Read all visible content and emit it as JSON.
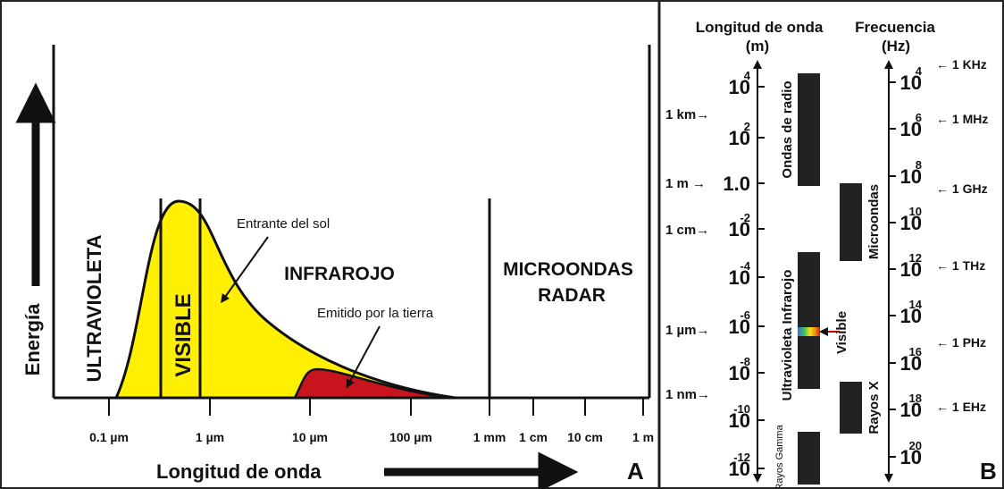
{
  "panel_a": {
    "y_axis_label": "Energía",
    "x_axis_label": "Longitud de onda",
    "panel_label": "A",
    "regions": [
      "ULTRAVIOLETA",
      "VISIBLE",
      "INFRAROJO",
      "MICROONDAS",
      "RADAR"
    ],
    "annotations": [
      "Entrante del sol",
      "Emitido por la tierra"
    ],
    "x_ticks": [
      "0.1 µm",
      "1 µm",
      "10 µm",
      "100 µm",
      "1 mm",
      "1 cm",
      "10 cm",
      "1 m"
    ]
  },
  "panel_b": {
    "wavelength_title": "Longitud de onda",
    "wavelength_unit": "(m)",
    "frequency_title": "Frecuencia",
    "frequency_unit": "(Hz)",
    "panel_label": "B",
    "wavelength_scale": [
      {
        "base": "10",
        "exp": "4"
      },
      {
        "base": "10",
        "exp": "2"
      },
      {
        "base": "1.0",
        "exp": ""
      },
      {
        "base": "10",
        "exp": "-2"
      },
      {
        "base": "10",
        "exp": "-4"
      },
      {
        "base": "10",
        "exp": "-6"
      },
      {
        "base": "10",
        "exp": "-8"
      },
      {
        "base": "10",
        "exp": "-10"
      },
      {
        "base": "10",
        "exp": "-12"
      }
    ],
    "wavelength_marks": [
      "1 km→",
      "1 m →",
      "1 cm→",
      "1 µm→",
      "1 nm→"
    ],
    "frequency_scale": [
      {
        "base": "10",
        "exp": "4"
      },
      {
        "base": "10",
        "exp": "6"
      },
      {
        "base": "10",
        "exp": "8"
      },
      {
        "base": "10",
        "exp": "10"
      },
      {
        "base": "10",
        "exp": "12"
      },
      {
        "base": "10",
        "exp": "14"
      },
      {
        "base": "10",
        "exp": "16"
      },
      {
        "base": "10",
        "exp": "18"
      },
      {
        "base": "10",
        "exp": "20"
      }
    ],
    "frequency_marks": [
      "← 1 KHz",
      "← 1 MHz",
      "← 1 GHz",
      "← 1 THz",
      "← 1 PHz",
      "← 1 EHz"
    ],
    "bands": [
      "Ondas de radio",
      "Ultravioleta Infrarojo",
      "Rayos Gamma",
      "Microondas",
      "Rayos X",
      "Visible"
    ]
  }
}
